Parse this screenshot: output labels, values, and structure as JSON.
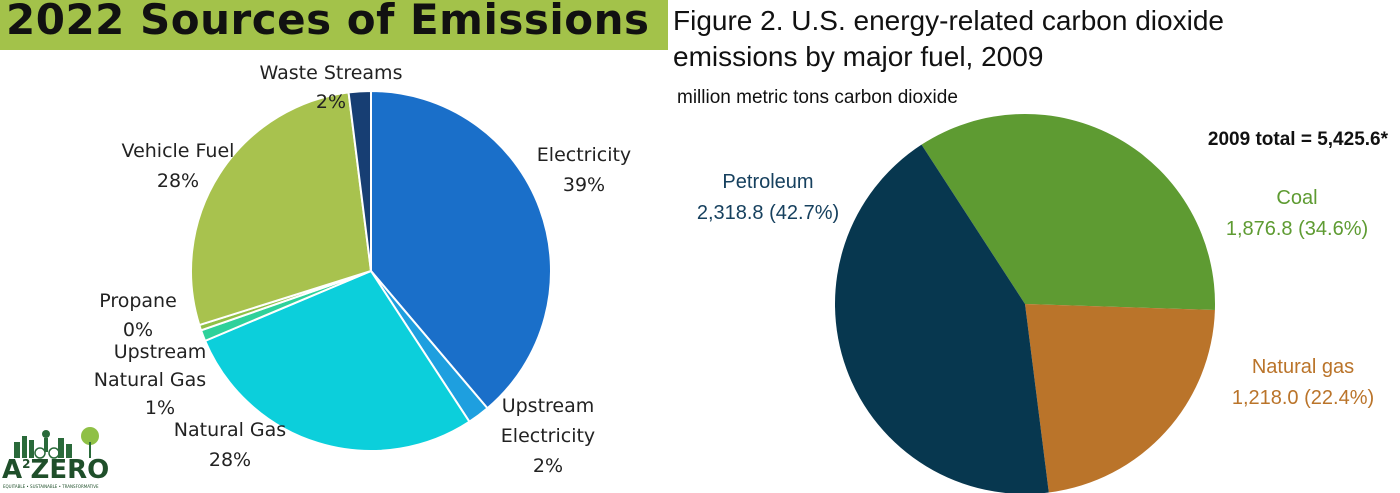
{
  "chart_data": [
    {
      "type": "pie",
      "title": "2022 Sources of Emissions",
      "unit": "%",
      "colors": {
        "banner": "#a3c24a"
      },
      "slices": [
        {
          "name": "Electricity",
          "value": 39,
          "value_label": "39%",
          "label_lines": [
            "Electricity"
          ],
          "color": "#1a6fc9"
        },
        {
          "name": "Upstream Electricity",
          "value": 2,
          "value_label": "2%",
          "label_lines": [
            "Upstream",
            "Electricity"
          ],
          "color": "#1e9fdf"
        },
        {
          "name": "Natural Gas",
          "value": 28,
          "value_label": "28%",
          "label_lines": [
            "Natural Gas"
          ],
          "color": "#0ccfdb"
        },
        {
          "name": "Upstream Natural Gas",
          "value": 1,
          "value_label": "1%",
          "label_lines": [
            "Upstream",
            "Natural Gas"
          ],
          "color": "#2ed19a"
        },
        {
          "name": "Propane",
          "value": 0.5,
          "value_label": "0%",
          "label_lines": [
            "Propane"
          ],
          "color": "#8fc046"
        },
        {
          "name": "Vehicle Fuel",
          "value": 28,
          "value_label": "28%",
          "label_lines": [
            "Vehicle Fuel"
          ],
          "color": "#a8c24e"
        },
        {
          "name": "Waste Streams",
          "value": 2,
          "value_label": "2%",
          "label_lines": [
            "Waste Streams"
          ],
          "color": "#173e73"
        }
      ]
    },
    {
      "type": "pie",
      "title": "Figure 2. U.S. energy-related carbon dioxide emissions by major fuel, 2009",
      "title_lines": [
        "Figure 2. U.S. energy-related carbon dioxide",
        "emissions by major fuel, 2009"
      ],
      "subtitle": "million metric tons carbon dioxide",
      "annotation": "2009 total  = 5,425.6*",
      "slices": [
        {
          "name": "Coal",
          "value": 1876.8,
          "value_label": "1,876.8 (34.6%)",
          "color": "#5e9b32",
          "text_color": "#5e9b32"
        },
        {
          "name": "Natural gas",
          "value": 1218.0,
          "value_label": "1,218.0 (22.4%)",
          "color": "#ba742a",
          "text_color": "#ba742a"
        },
        {
          "name": "Petroleum",
          "value": 2318.8,
          "value_label": "2,318.8 (42.7%)",
          "color": "#07374f",
          "text_color": "#16405e"
        }
      ]
    }
  ],
  "logo": {
    "text": "A",
    "sup": "2",
    "text_end": "ZERO",
    "tagline": "EQUITABLE • SUSTAINABLE • TRANSFORMATIVE",
    "color": "#1f4f2a"
  }
}
